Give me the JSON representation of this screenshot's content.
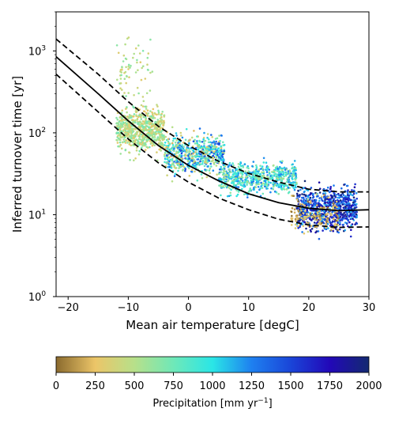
{
  "chart_data": {
    "type": "scatter",
    "title": "",
    "xlabel": "Mean air temperature [degC]",
    "ylabel": "Inferred turnover time [yr]",
    "xlim": [
      -22,
      30
    ],
    "ylim": [
      1,
      3000
    ],
    "y_scale": "log",
    "grid": false,
    "x_ticks": [
      -20,
      -10,
      0,
      10,
      20,
      30
    ],
    "x_tick_labels": [
      "−20",
      "−10",
      "0",
      "10",
      "20",
      "30"
    ],
    "y_ticks": [
      1,
      10,
      100,
      1000
    ],
    "y_tick_labels": [
      {
        "base": "10",
        "exp": "0"
      },
      {
        "base": "10",
        "exp": "1"
      },
      {
        "base": "10",
        "exp": "2"
      },
      {
        "base": "10",
        "exp": "3"
      }
    ],
    "color_variable": {
      "label": "Precipitation [mm yr",
      "label_exp": "−1",
      "label_end": "]",
      "range": [
        0,
        2000
      ],
      "ticks": [
        "0",
        "250",
        "500",
        "750",
        "1000",
        "1250",
        "1500",
        "1750",
        "2000"
      ],
      "colormap_stops": [
        "#8a6a2e",
        "#ecc568",
        "#b7e08a",
        "#6fe8b8",
        "#2ae6e6",
        "#1e80f0",
        "#1a45d8",
        "#2208b8",
        "#132a70"
      ]
    },
    "fit_curves": [
      {
        "style": "solid",
        "color": "#000000",
        "x": [
          -22,
          -15,
          -10,
          -5,
          0,
          5,
          10,
          15,
          20,
          25,
          30
        ],
        "y": [
          850,
          300,
          140,
          70,
          40,
          26,
          18,
          14,
          12,
          11.2,
          11.5
        ]
      },
      {
        "style": "dashed",
        "color": "#000000",
        "x": [
          -22,
          -15,
          -10,
          -5,
          0,
          5,
          10,
          15,
          20,
          25,
          30
        ],
        "y": [
          1400,
          520,
          240,
          120,
          70,
          45,
          32,
          25,
          20.5,
          19,
          19
        ]
      },
      {
        "style": "dashed",
        "color": "#000000",
        "x": [
          -22,
          -15,
          -10,
          -5,
          0,
          5,
          10,
          15,
          20,
          25,
          30
        ],
        "y": [
          520,
          180,
          84,
          43,
          25,
          16,
          11.5,
          8.8,
          7.5,
          7,
          7.1
        ]
      }
    ],
    "point_clusters": [
      {
        "x_range": [
          -12,
          -4
        ],
        "y_center": 110,
        "y_spread_log10": 0.25,
        "precip_range": [
          250,
          750
        ],
        "count": 700
      },
      {
        "x_range": [
          -4,
          6
        ],
        "y_center": 55,
        "y_spread_log10": 0.22,
        "precip_range": [
          200,
          1500
        ],
        "count": 650
      },
      {
        "x_range": [
          5,
          18
        ],
        "y_center": 28,
        "y_spread_log10": 0.18,
        "precip_range": [
          500,
          1300
        ],
        "count": 650
      },
      {
        "x_range": [
          18,
          28
        ],
        "y_center": 12,
        "y_spread_log10": 0.25,
        "precip_range": [
          1100,
          2000
        ],
        "count": 800
      },
      {
        "x_range": [
          17,
          25
        ],
        "y_center": 10,
        "y_spread_log10": 0.2,
        "precip_range": [
          0,
          400
        ],
        "count": 150
      },
      {
        "x_range": [
          -12,
          -6
        ],
        "y_center": 600,
        "y_spread_log10": 0.35,
        "precip_range": [
          300,
          700
        ],
        "count": 70
      }
    ]
  }
}
